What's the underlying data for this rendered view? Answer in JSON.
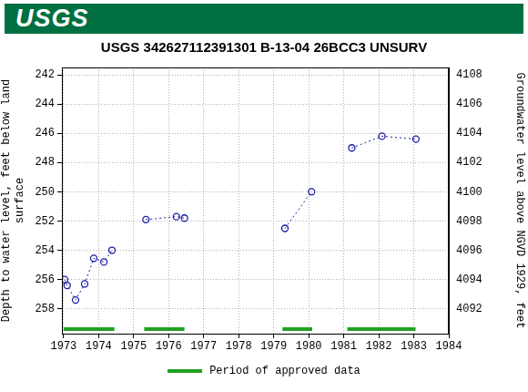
{
  "header": "USGS",
  "chart_data": {
    "type": "scatter",
    "title": "USGS 342627112391301 B-13-04 26BCC3 UNSURV",
    "y_label": [
      "Depth to water level, feet below land",
      "surface"
    ],
    "y2_label": "Groundwater level above NGVD 1929, feet",
    "xlim": [
      1972.95,
      1984
    ],
    "xticks": [
      1973,
      1974,
      1975,
      1976,
      1977,
      1978,
      1979,
      1980,
      1981,
      1982,
      1983,
      1984
    ],
    "ylim": [
      259.7,
      241.5
    ],
    "yticks": [
      242,
      244,
      246,
      248,
      250,
      252,
      254,
      256,
      258
    ],
    "y2lim": [
      4090.3,
      4108.5
    ],
    "y2ticks": [
      4092,
      4094,
      4096,
      4098,
      4100,
      4102,
      4104,
      4106,
      4108
    ],
    "grid": true,
    "series": [
      {
        "x": [
          1973.03,
          1973.1,
          1973.34,
          1973.6,
          1973.86,
          1974.15,
          1974.38
        ],
        "values": [
          256.0,
          256.4,
          257.4,
          256.3,
          254.55,
          254.8,
          254.0
        ],
        "color": "#1a1aa6",
        "marker": "circle",
        "line_style": "dotted"
      },
      {
        "x": [
          1975.35,
          1976.22,
          1976.45
        ],
        "values": [
          251.9,
          251.7,
          251.8
        ],
        "color": "#1a1aa6",
        "marker": "circle",
        "line_style": "dotted"
      },
      {
        "x": [
          1979.32,
          1980.08
        ],
        "values": [
          252.5,
          250.0
        ],
        "color": "#1a1aa6",
        "marker": "circle",
        "line_style": "dotted"
      },
      {
        "x": [
          1981.23,
          1982.09,
          1983.06
        ],
        "values": [
          247.0,
          246.2,
          246.4
        ],
        "color": "#1a1aa6",
        "marker": "circle",
        "line_style": "dotted"
      }
    ],
    "approved_periods": {
      "name": "Period of approved data",
      "color": "#22a022",
      "ranges": [
        [
          1973.0,
          1974.45
        ],
        [
          1975.3,
          1976.45
        ],
        [
          1979.25,
          1980.1
        ],
        [
          1981.1,
          1983.05
        ]
      ]
    }
  }
}
